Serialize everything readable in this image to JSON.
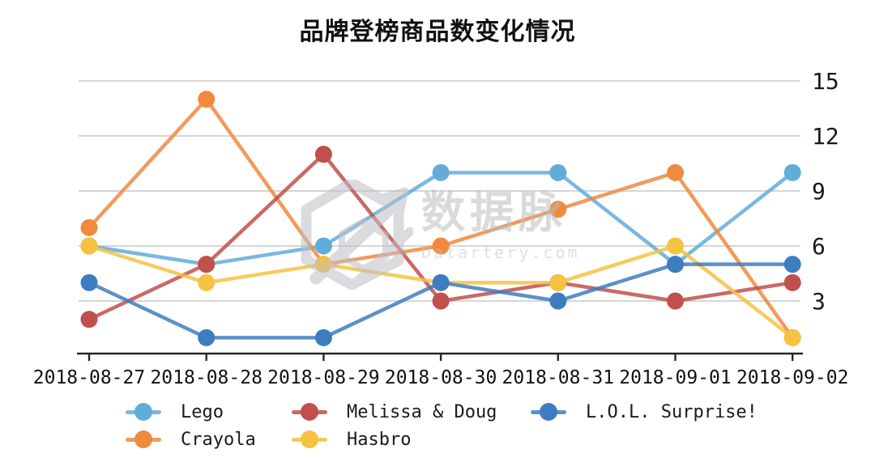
{
  "title": "品牌登榜商品数变化情况",
  "watermark": {
    "brand": "数据脉",
    "domain": "Datartery.com"
  },
  "chart_data": {
    "type": "line",
    "title": "品牌登榜商品数变化情况",
    "x": [
      "2018-08-27",
      "2018-08-28",
      "2018-08-29",
      "2018-08-30",
      "2018-08-31",
      "2018-09-01",
      "2018-09-02"
    ],
    "series": [
      {
        "name": "Lego",
        "color": "#62ACDC",
        "values": [
          6,
          5,
          6,
          10,
          10,
          5,
          10
        ]
      },
      {
        "name": "Crayola",
        "color": "#EF8A3F",
        "values": [
          7,
          14,
          5,
          6,
          8,
          10,
          1
        ]
      },
      {
        "name": "Melissa & Doug",
        "color": "#C14F4B",
        "values": [
          2,
          5,
          11,
          3,
          4,
          3,
          4
        ]
      },
      {
        "name": "Hasbro",
        "color": "#F5C242",
        "values": [
          6,
          4,
          5,
          4,
          4,
          6,
          1
        ]
      },
      {
        "name": "L.O.L. Surprise!",
        "color": "#3E7CC1",
        "values": [
          4,
          1,
          1,
          4,
          3,
          5,
          5
        ]
      }
    ],
    "yticks": [
      3,
      6,
      9,
      12,
      15
    ],
    "ylim": [
      0,
      15.5
    ],
    "grid": "horizontal-only",
    "legend_position": "bottom",
    "legend_rows": [
      [
        "Lego",
        "Melissa & Doug",
        "L.O.L. Surprise!"
      ],
      [
        "Crayola",
        "Hasbro"
      ]
    ]
  }
}
